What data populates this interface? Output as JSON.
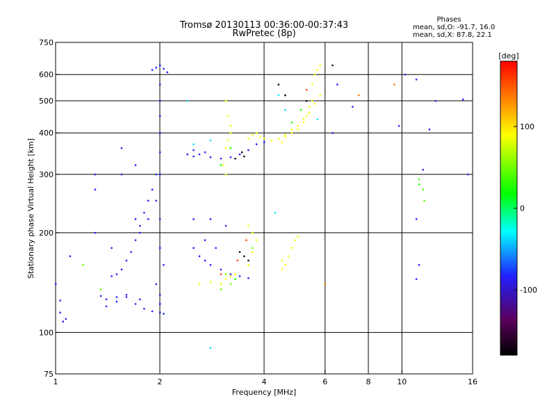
{
  "header": {
    "title_line1": "Tromsø 20130113 00:36:00-00:37:43",
    "title_line2": "RwPretec (8p)"
  },
  "stats": {
    "heading": "Phases",
    "line_o": "mean, sd,O: -91.7, 16.0",
    "line_x": "mean, sd,X:  87.8, 22.1"
  },
  "chart_data": {
    "type": "scatter",
    "title": "Tromsø 20130113 00:36:00-00:37:43",
    "subtitle": "RwPretec (8p)",
    "xlabel": "Frequency [MHz]",
    "ylabel": "Stationary phase Virtual Height [km]",
    "x_scale": "log",
    "y_scale": "log",
    "xlim": [
      1,
      16
    ],
    "ylim": [
      75,
      750
    ],
    "x_ticks": [
      1,
      2,
      4,
      6,
      8,
      10,
      16
    ],
    "x_tick_labels": [
      "1",
      "2",
      "4",
      "6",
      "8",
      "10",
      "16"
    ],
    "x_grid": [
      2,
      4,
      6,
      8,
      10
    ],
    "y_ticks": [
      75,
      100,
      200,
      300,
      400,
      500,
      600,
      750
    ],
    "y_tick_labels": [
      "75",
      "100",
      "200",
      "300",
      "400",
      "500",
      "600",
      "750"
    ],
    "y_grid": [
      100,
      200,
      300,
      400,
      500,
      600
    ],
    "grid": true,
    "colorbar": {
      "label": "[deg]",
      "range": [
        -180,
        180
      ],
      "ticks": [
        100,
        0,
        -100
      ],
      "tick_labels": [
        "100",
        "0",
        "-100"
      ],
      "colormap": [
        "#000000",
        "#5a005a",
        "#2020ff",
        "#00ffff",
        "#00ff00",
        "#ffff00",
        "#ff0000"
      ]
    },
    "series": [
      {
        "phase": -100,
        "points": [
          [
            1.0,
            140
          ],
          [
            1.03,
            115
          ],
          [
            1.05,
            108
          ],
          [
            1.07,
            110
          ],
          [
            1.03,
            125
          ],
          [
            1.1,
            170
          ]
        ]
      },
      {
        "phase": -100,
        "points": [
          [
            1.35,
            129
          ],
          [
            1.4,
            126
          ],
          [
            1.5,
            128
          ],
          [
            1.6,
            130
          ],
          [
            1.7,
            122
          ],
          [
            1.8,
            118
          ],
          [
            1.9,
            116
          ],
          [
            2.0,
            115
          ],
          [
            2.05,
            114
          ],
          [
            1.4,
            120
          ],
          [
            1.5,
            124
          ],
          [
            1.6,
            128
          ],
          [
            1.75,
            126
          ]
        ]
      },
      {
        "phase": -100,
        "points": [
          [
            1.9,
            620
          ],
          [
            1.95,
            630
          ],
          [
            2.0,
            640
          ],
          [
            2.05,
            625
          ],
          [
            2.1,
            610
          ],
          [
            2.0,
            560
          ],
          [
            2.0,
            500
          ],
          [
            2.0,
            450
          ],
          [
            2.0,
            400
          ],
          [
            2.0,
            350
          ],
          [
            2.0,
            300
          ],
          [
            1.95,
            250
          ],
          [
            2.0,
            220
          ],
          [
            2.0,
            180
          ],
          [
            2.05,
            160
          ],
          [
            1.95,
            140
          ],
          [
            2.0,
            130
          ],
          [
            2.0,
            122
          ]
        ]
      },
      {
        "phase": -100,
        "points": [
          [
            1.85,
            250
          ],
          [
            1.9,
            270
          ],
          [
            1.95,
            300
          ],
          [
            1.8,
            230
          ],
          [
            1.75,
            210
          ],
          [
            1.7,
            190
          ],
          [
            1.65,
            175
          ],
          [
            1.6,
            165
          ],
          [
            1.55,
            155
          ],
          [
            1.5,
            150
          ],
          [
            1.45,
            148
          ],
          [
            1.75,
            200
          ],
          [
            1.85,
            220
          ]
        ]
      },
      {
        "phase": -100,
        "points": [
          [
            2.4,
            345
          ],
          [
            2.5,
            340
          ],
          [
            2.6,
            345
          ],
          [
            2.8,
            338
          ],
          [
            3.0,
            335
          ],
          [
            3.2,
            338
          ],
          [
            3.4,
            345
          ],
          [
            3.6,
            355
          ],
          [
            3.8,
            370
          ],
          [
            4.0,
            375
          ],
          [
            2.5,
            355
          ],
          [
            2.7,
            350
          ]
        ]
      },
      {
        "phase": -100,
        "points": [
          [
            2.5,
            180
          ],
          [
            2.6,
            170
          ],
          [
            2.7,
            165
          ],
          [
            2.8,
            160
          ],
          [
            3.0,
            155
          ],
          [
            3.2,
            150
          ],
          [
            3.4,
            148
          ],
          [
            3.6,
            146
          ],
          [
            2.5,
            220
          ],
          [
            2.8,
            220
          ],
          [
            3.1,
            210
          ],
          [
            2.7,
            190
          ],
          [
            2.9,
            180
          ]
        ]
      },
      {
        "phase": -100,
        "points": [
          [
            1.3,
            300
          ],
          [
            1.3,
            270
          ],
          [
            1.3,
            200
          ],
          [
            1.55,
            360
          ],
          [
            1.55,
            300
          ],
          [
            1.7,
            220
          ],
          [
            1.7,
            320
          ],
          [
            1.45,
            180
          ]
        ]
      },
      {
        "phase": 100,
        "points": [
          [
            3.1,
            500
          ],
          [
            3.15,
            450
          ],
          [
            3.2,
            400
          ],
          [
            3.15,
            380
          ],
          [
            3.1,
            360
          ],
          [
            3.2,
            420
          ],
          [
            3.05,
            320
          ],
          [
            3.1,
            300
          ]
        ]
      },
      {
        "phase": 100,
        "points": [
          [
            3.6,
            385
          ],
          [
            3.7,
            395
          ],
          [
            3.8,
            400
          ],
          [
            3.9,
            390
          ],
          [
            4.0,
            385
          ],
          [
            4.2,
            380
          ],
          [
            4.4,
            385
          ],
          [
            4.6,
            395
          ],
          [
            4.8,
            410
          ],
          [
            5.0,
            420
          ],
          [
            5.2,
            440
          ],
          [
            5.4,
            460
          ],
          [
            5.6,
            490
          ],
          [
            5.8,
            520
          ]
        ]
      },
      {
        "phase": 100,
        "points": [
          [
            5.5,
            560
          ],
          [
            5.6,
            600
          ],
          [
            5.7,
            620
          ],
          [
            5.8,
            640
          ],
          [
            5.5,
            500
          ],
          [
            5.4,
            480
          ],
          [
            5.3,
            450
          ],
          [
            5.2,
            430
          ],
          [
            5.0,
            410
          ],
          [
            4.8,
            400
          ],
          [
            4.6,
            390
          ],
          [
            4.5,
            375
          ]
        ]
      },
      {
        "phase": 100,
        "points": [
          [
            4.5,
            165
          ],
          [
            4.6,
            160
          ],
          [
            4.7,
            170
          ],
          [
            4.8,
            180
          ],
          [
            4.9,
            190
          ],
          [
            5.0,
            195
          ],
          [
            4.5,
            155
          ]
        ]
      },
      {
        "phase": 100,
        "points": [
          [
            2.6,
            140
          ],
          [
            2.8,
            142
          ],
          [
            3.0,
            140
          ],
          [
            3.1,
            145
          ],
          [
            3.2,
            148
          ],
          [
            3.3,
            150
          ],
          [
            3.6,
            160
          ],
          [
            3.7,
            175
          ],
          [
            3.8,
            190
          ],
          [
            3.7,
            200
          ],
          [
            3.6,
            210
          ]
        ]
      },
      {
        "phase": 40,
        "points": [
          [
            3.1,
            150
          ],
          [
            3.2,
            140
          ],
          [
            3.0,
            135
          ],
          [
            1.35,
            135
          ],
          [
            1.2,
            160
          ],
          [
            3.7,
            180
          ]
        ]
      },
      {
        "phase": -170,
        "points": [
          [
            3.3,
            335
          ],
          [
            3.45,
            350
          ],
          [
            3.5,
            340
          ],
          [
            4.4,
            560
          ],
          [
            4.6,
            520
          ],
          [
            5.3,
            500
          ],
          [
            3.4,
            175
          ],
          [
            3.5,
            170
          ],
          [
            3.6,
            165
          ],
          [
            6.3,
            640
          ]
        ]
      },
      {
        "phase": 10,
        "points": [
          [
            3.2,
            360
          ],
          [
            3.0,
            320
          ],
          [
            4.8,
            430
          ],
          [
            5.1,
            470
          ],
          [
            11.2,
            280
          ],
          [
            3.3,
            145
          ]
        ]
      },
      {
        "phase": 160,
        "points": [
          [
            3.35,
            165
          ],
          [
            3.55,
            190
          ],
          [
            3.0,
            150
          ],
          [
            5.3,
            540
          ]
        ]
      },
      {
        "phase": -40,
        "points": [
          [
            2.5,
            370
          ],
          [
            2.8,
            380
          ],
          [
            2.4,
            500
          ],
          [
            4.4,
            520
          ],
          [
            4.6,
            470
          ],
          [
            2.8,
            90
          ],
          [
            4.3,
            230
          ],
          [
            5.7,
            440
          ]
        ]
      },
      {
        "phase": -100,
        "points": [
          [
            6.3,
            400
          ],
          [
            6.5,
            560
          ],
          [
            7.2,
            480
          ],
          [
            9.8,
            420
          ],
          [
            10.2,
            600
          ],
          [
            11.0,
            580
          ],
          [
            11.5,
            310
          ],
          [
            12.0,
            410
          ],
          [
            12.5,
            500
          ],
          [
            15.0,
            505
          ],
          [
            15.5,
            300
          ],
          [
            11.0,
            220
          ],
          [
            11.2,
            160
          ],
          [
            11.0,
            145
          ]
        ]
      },
      {
        "phase": 30,
        "points": [
          [
            11.2,
            290
          ],
          [
            11.5,
            270
          ],
          [
            11.6,
            250
          ]
        ]
      },
      {
        "phase": 140,
        "points": [
          [
            9.5,
            560
          ],
          [
            7.5,
            520
          ],
          [
            6.0,
            140
          ]
        ]
      }
    ]
  }
}
